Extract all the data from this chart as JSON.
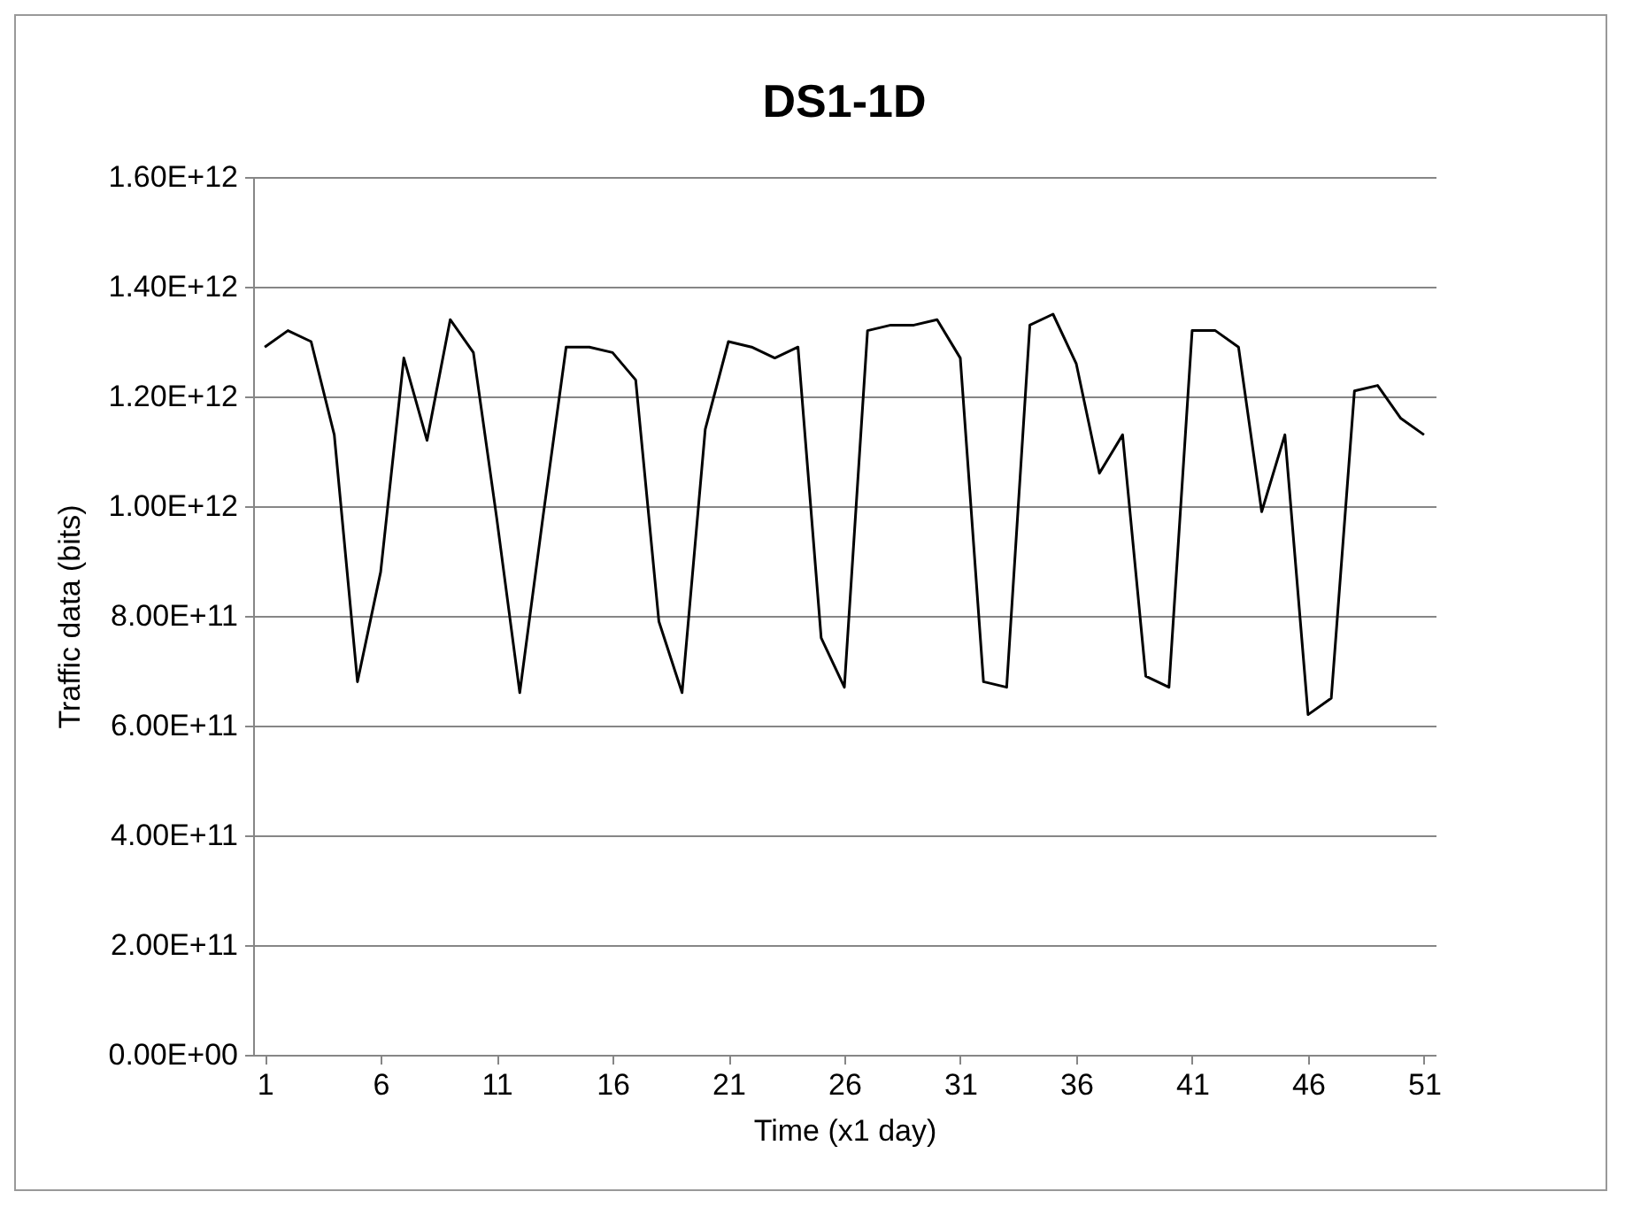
{
  "chart_data": {
    "type": "line",
    "title": "DS1-1D",
    "xlabel": "Time (x1 day)",
    "ylabel": "Traffic data (bits)",
    "x": [
      1,
      2,
      3,
      4,
      5,
      6,
      7,
      8,
      9,
      10,
      11,
      12,
      13,
      14,
      15,
      16,
      17,
      18,
      19,
      20,
      21,
      22,
      23,
      24,
      25,
      26,
      27,
      28,
      29,
      30,
      31,
      32,
      33,
      34,
      35,
      36,
      37,
      38,
      39,
      40,
      41,
      42,
      43,
      44,
      45,
      46,
      47,
      48,
      49,
      50,
      51
    ],
    "xlim": [
      0.5,
      51.5
    ],
    "xticks": [
      1,
      6,
      11,
      16,
      21,
      26,
      31,
      36,
      41,
      46,
      51
    ],
    "series": [
      {
        "color": "#000000",
        "values": [
          1290000000000.0,
          1320000000000.0,
          1300000000000.0,
          1130000000000.0,
          680000000000.0,
          880000000000.0,
          1270000000000.0,
          1120000000000.0,
          1340000000000.0,
          1280000000000.0,
          980000000000.0,
          660000000000.0,
          980000000000.0,
          1290000000000.0,
          1290000000000.0,
          1280000000000.0,
          1230000000000.0,
          790000000000.0,
          660000000000.0,
          1140000000000.0,
          1300000000000.0,
          1290000000000.0,
          1270000000000.0,
          1290000000000.0,
          760000000000.0,
          670000000000.0,
          1320000000000.0,
          1330000000000.0,
          1330000000000.0,
          1340000000000.0,
          1270000000000.0,
          680000000000.0,
          670000000000.0,
          1330000000000.0,
          1350000000000.0,
          1260000000000.0,
          1060000000000.0,
          1130000000000.0,
          690000000000.0,
          670000000000.0,
          1320000000000.0,
          1320000000000.0,
          1290000000000.0,
          990000000000.0,
          1130000000000.0,
          620000000000.0,
          650000000000.0,
          1210000000000.0,
          1220000000000.0,
          1160000000000.0,
          1130000000000.0
        ]
      }
    ],
    "ylim": [
      0,
      1600000000000.0
    ],
    "yticks": [
      {
        "value": 0,
        "label": "0.00E+00"
      },
      {
        "value": 200000000000.0,
        "label": "2.00E+11"
      },
      {
        "value": 400000000000.0,
        "label": "4.00E+11"
      },
      {
        "value": 600000000000.0,
        "label": "6.00E+11"
      },
      {
        "value": 800000000000.0,
        "label": "8.00E+11"
      },
      {
        "value": 1000000000000.0,
        "label": "1.00E+12"
      },
      {
        "value": 1200000000000.0,
        "label": "1.20E+12"
      },
      {
        "value": 1400000000000.0,
        "label": "1.40E+12"
      },
      {
        "value": 1600000000000.0,
        "label": "1.60E+12"
      }
    ],
    "grid": "y",
    "marker": "none",
    "line_style": "solid"
  }
}
